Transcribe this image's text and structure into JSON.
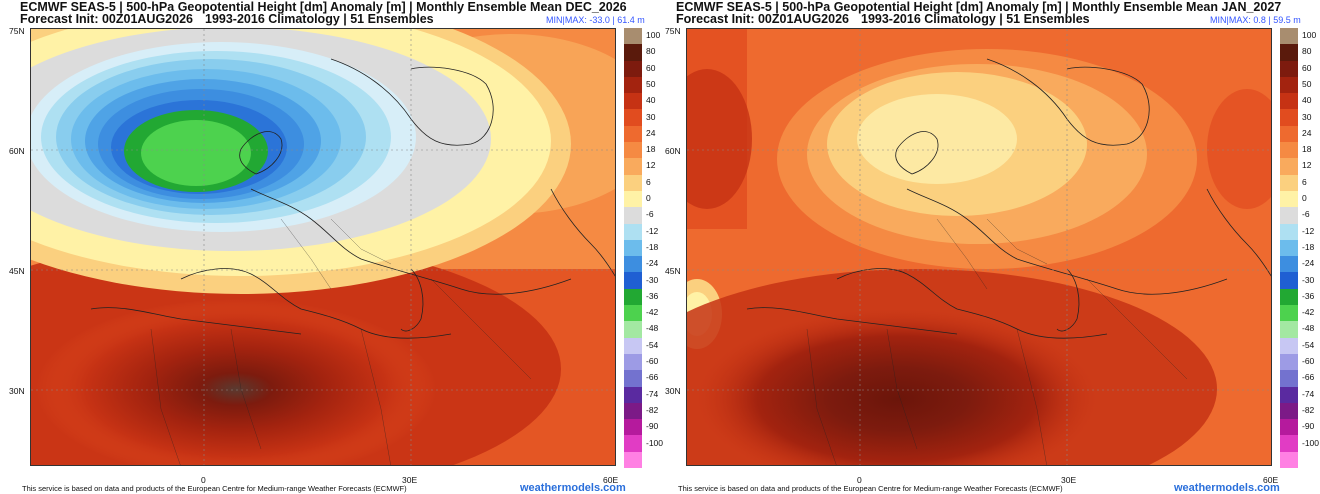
{
  "panels": [
    {
      "title_line1": "ECMWF SEAS-5 | 500-hPa Geopotential Height [dm] Anomaly [m] | Monthly Ensemble Mean DEC_2026",
      "forecast_init": "Forecast Init: 00Z01AUG2026",
      "climatology": "1993-2016 Climatology | 51 Ensembles",
      "minmax": "MIN|MAX: -33.0 | 61.4 m",
      "scenario": "dec"
    },
    {
      "title_line1": "ECMWF SEAS-5 | 500-hPa Geopotential Height [dm] Anomaly [m] | Monthly Ensemble Mean JAN_2027",
      "forecast_init": "Forecast Init: 00Z01AUG2026",
      "climatology": "1993-2016 Climatology | 51 Ensembles",
      "minmax": "MIN|MAX: 0.8 | 59.5 m",
      "scenario": "jan"
    }
  ],
  "lat_labels": [
    "75N",
    "60N",
    "45N",
    "30N"
  ],
  "lon_labels": [
    "0",
    "30E",
    "60E"
  ],
  "colorbar": {
    "labels": [
      "100",
      "80",
      "60",
      "50",
      "40",
      "30",
      "24",
      "18",
      "12",
      "6",
      "0",
      "-6",
      "-12",
      "-18",
      "-24",
      "-30",
      "-36",
      "-42",
      "-48",
      "-54",
      "-60",
      "-66",
      "-74",
      "-82",
      "-90",
      "-100"
    ],
    "colors": [
      "#a88d6f",
      "#5a1a0c",
      "#7d1b0e",
      "#a3230f",
      "#c63214",
      "#e14c1f",
      "#ee6a2f",
      "#f58a43",
      "#f9aa5d",
      "#fbd07f",
      "#fff2a6",
      "#dcdcdc",
      "#aee0f2",
      "#6cbcec",
      "#3d8ee0",
      "#1f5fd3",
      "#22a833",
      "#4dd24e",
      "#a3e8a2",
      "#c7c7f3",
      "#9d9be5",
      "#7372cf",
      "#5a2aa0",
      "#7c1a87",
      "#b51a9d",
      "#e13cc4",
      "#ff80e3"
    ]
  },
  "footer": "This service is based on data and products of the European Centre for Medium-range Weather Forecasts (ECMWF)",
  "brand": "weathermodels.com"
}
